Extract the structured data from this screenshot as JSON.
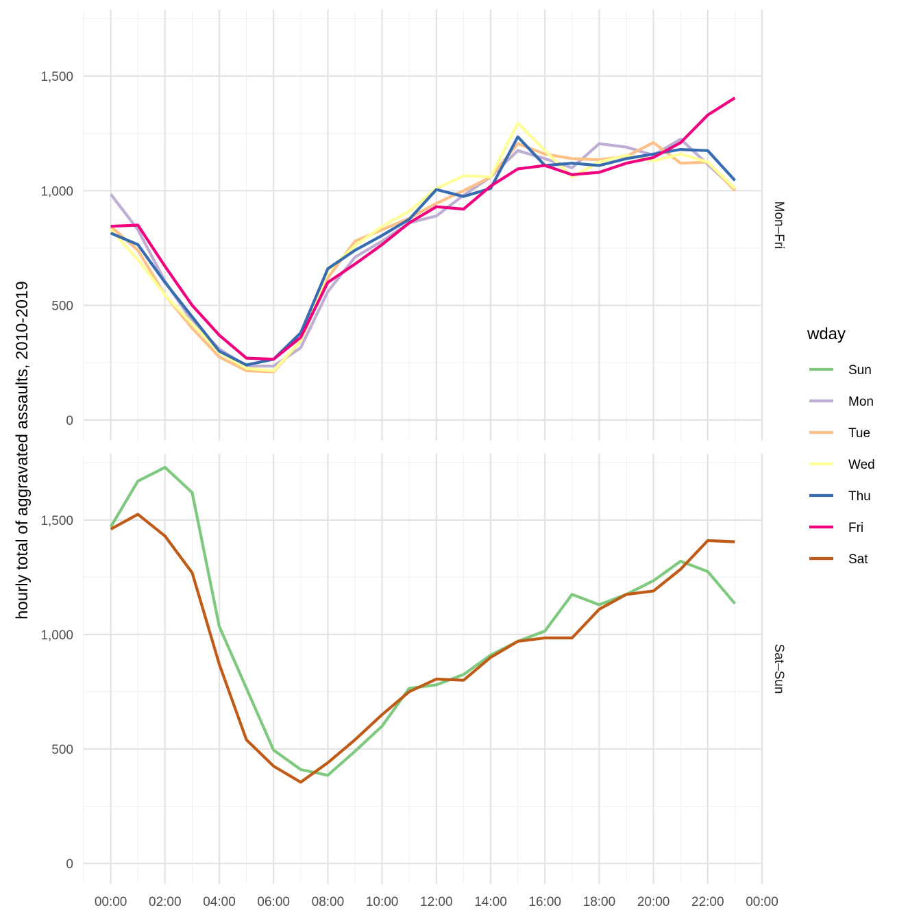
{
  "chart_data": {
    "type": "line",
    "ylabel": "hourly total of aggravated assaults, 2010-2019",
    "x_tick_labels": [
      "00:00",
      "02:00",
      "04:00",
      "06:00",
      "08:00",
      "10:00",
      "12:00",
      "14:00",
      "16:00",
      "18:00",
      "20:00",
      "22:00",
      "00:00"
    ],
    "y_ticks": [
      0,
      500,
      1000,
      1500
    ],
    "y_tick_labels": [
      "0",
      "500",
      "1,000",
      "1,500"
    ],
    "ylim": [
      -90,
      1790
    ],
    "xlim": [
      -1,
      24
    ],
    "x_hours": [
      0,
      1,
      2,
      3,
      4,
      5,
      6,
      7,
      8,
      9,
      10,
      11,
      12,
      13,
      14,
      15,
      16,
      17,
      18,
      19,
      20,
      21,
      22,
      23
    ],
    "grid": true,
    "legend": {
      "title": "wday",
      "position": "right",
      "entries": [
        {
          "name": "Sun",
          "color": "#7fc97f"
        },
        {
          "name": "Mon",
          "color": "#beaed4"
        },
        {
          "name": "Tue",
          "color": "#fdc086"
        },
        {
          "name": "Wed",
          "color": "#ffff99"
        },
        {
          "name": "Thu",
          "color": "#386cb0"
        },
        {
          "name": "Fri",
          "color": "#f0027f"
        },
        {
          "name": "Sat",
          "color": "#bf5b17"
        }
      ]
    },
    "panels": [
      {
        "label": "Mon–Fri",
        "series": [
          {
            "name": "Mon",
            "color": "#beaed4",
            "values": [
              985,
              830,
              605,
              430,
              310,
              235,
              235,
              315,
              560,
              710,
              780,
              860,
              890,
              980,
              1060,
              1175,
              1140,
              1100,
              1205,
              1190,
              1155,
              1225,
              1115,
              1005
            ]
          },
          {
            "name": "Tue",
            "color": "#fdc086",
            "values": [
              845,
              740,
              545,
              400,
              275,
              215,
              210,
              345,
              620,
              780,
              830,
              880,
              945,
              1000,
              1060,
              1205,
              1160,
              1140,
              1135,
              1150,
              1210,
              1120,
              1125,
              1000
            ]
          },
          {
            "name": "Wed",
            "color": "#ffff99",
            "values": [
              830,
              700,
              545,
              420,
              295,
              225,
              215,
              345,
              650,
              760,
              845,
              910,
              1010,
              1065,
              1060,
              1295,
              1175,
              1060,
              1125,
              1155,
              1130,
              1160,
              1125,
              1010
            ]
          },
          {
            "name": "Thu",
            "color": "#386cb0",
            "values": [
              815,
              765,
              600,
              450,
              300,
              240,
              265,
              380,
              660,
              740,
              805,
              875,
              1005,
              975,
              1010,
              1235,
              1110,
              1120,
              1110,
              1140,
              1160,
              1180,
              1175,
              1045
            ]
          },
          {
            "name": "Fri",
            "color": "#f0027f",
            "values": [
              845,
              850,
              670,
              500,
              370,
              270,
              265,
              360,
              600,
              680,
              765,
              860,
              930,
              920,
              1020,
              1095,
              1110,
              1070,
              1080,
              1120,
              1145,
              1210,
              1330,
              1405
            ]
          }
        ]
      },
      {
        "label": "Sat–Sun",
        "series": [
          {
            "name": "Sun",
            "color": "#7fc97f",
            "values": [
              1470,
              1670,
              1730,
              1620,
              1035,
              765,
              495,
              410,
              385,
              490,
              600,
              765,
              780,
              825,
              910,
              970,
              1015,
              1175,
              1130,
              1175,
              1235,
              1320,
              1275,
              1135
            ]
          },
          {
            "name": "Sat",
            "color": "#bf5b17",
            "values": [
              1460,
              1525,
              1430,
              1270,
              870,
              540,
              425,
              355,
              440,
              540,
              650,
              750,
              805,
              800,
              900,
              970,
              985,
              985,
              1110,
              1175,
              1190,
              1285,
              1410,
              1405
            ]
          }
        ]
      }
    ]
  }
}
